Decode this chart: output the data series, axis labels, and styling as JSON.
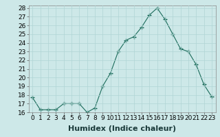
{
  "x": [
    0,
    1,
    2,
    3,
    4,
    5,
    6,
    7,
    8,
    9,
    10,
    11,
    12,
    13,
    14,
    15,
    16,
    17,
    18,
    19,
    20,
    21,
    22,
    23
  ],
  "y": [
    17.7,
    16.3,
    16.3,
    16.3,
    17.0,
    17.0,
    17.0,
    16.0,
    16.5,
    19.0,
    20.5,
    23.0,
    24.3,
    24.7,
    25.8,
    27.2,
    28.0,
    26.7,
    25.0,
    23.3,
    23.0,
    21.5,
    19.2,
    17.8
  ],
  "xlabel": "Humidex (Indice chaleur)",
  "ylim": [
    16,
    28
  ],
  "yticks": [
    16,
    17,
    18,
    19,
    20,
    21,
    22,
    23,
    24,
    25,
    26,
    27,
    28
  ],
  "xticks": [
    0,
    1,
    2,
    3,
    4,
    5,
    6,
    7,
    8,
    9,
    10,
    11,
    12,
    13,
    14,
    15,
    16,
    17,
    18,
    19,
    20,
    21,
    22,
    23
  ],
  "xtick_labels": [
    "0",
    "1",
    "2",
    "3",
    "4",
    "5",
    "6",
    "7",
    "8",
    "9",
    "10",
    "11",
    "12",
    "13",
    "14",
    "15",
    "16",
    "17",
    "18",
    "19",
    "20",
    "21",
    "22",
    "23"
  ],
  "line_color": "#1a6b5a",
  "marker": "+",
  "marker_size": 4,
  "bg_color": "#cde8e8",
  "grid_color": "#b0d4d4",
  "xlabel_fontsize": 8,
  "tick_fontsize": 6.5
}
